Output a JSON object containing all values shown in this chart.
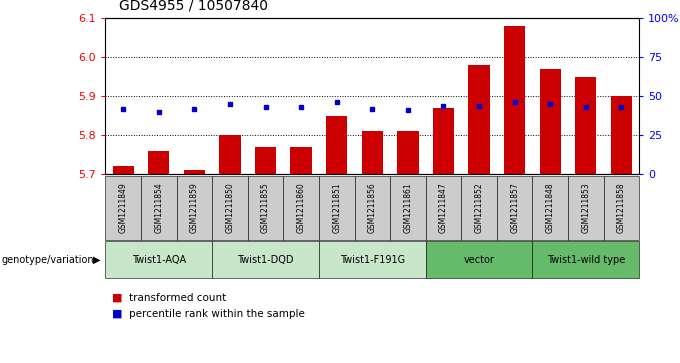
{
  "title": "GDS4955 / 10507840",
  "samples": [
    "GSM1211849",
    "GSM1211854",
    "GSM1211859",
    "GSM1211850",
    "GSM1211855",
    "GSM1211860",
    "GSM1211851",
    "GSM1211856",
    "GSM1211861",
    "GSM1211847",
    "GSM1211852",
    "GSM1211857",
    "GSM1211848",
    "GSM1211853",
    "GSM1211858"
  ],
  "bar_values": [
    5.72,
    5.76,
    5.71,
    5.8,
    5.77,
    5.77,
    5.85,
    5.81,
    5.81,
    5.87,
    5.98,
    6.08,
    5.97,
    5.95,
    5.9
  ],
  "percentile_values": [
    42,
    40,
    42,
    45,
    43,
    43,
    46,
    42,
    41,
    44,
    44,
    46,
    45,
    43,
    43
  ],
  "groups": [
    {
      "label": "Twist1-AQA",
      "start": 0,
      "end": 3,
      "color": "#c8e6c9"
    },
    {
      "label": "Twist1-DQD",
      "start": 3,
      "end": 6,
      "color": "#c8e6c9"
    },
    {
      "label": "Twist1-F191G",
      "start": 6,
      "end": 9,
      "color": "#c8e6c9"
    },
    {
      "label": "vector",
      "start": 9,
      "end": 12,
      "color": "#66bb6a"
    },
    {
      "label": "Twist1-wild type",
      "start": 12,
      "end": 15,
      "color": "#66bb6a"
    }
  ],
  "ylim_left": [
    5.7,
    6.1
  ],
  "ylim_right": [
    0,
    100
  ],
  "yticks_left": [
    5.7,
    5.8,
    5.9,
    6.0,
    6.1
  ],
  "yticks_right": [
    0,
    25,
    50,
    75,
    100
  ],
  "bar_color": "#cc0000",
  "dot_color": "#0000cc",
  "bar_bottom": 5.7,
  "label_genotype": "genotype/variation",
  "legend_bar": "transformed count",
  "legend_dot": "percentile rank within the sample",
  "bar_width": 0.6,
  "sample_bg_color": "#cccccc",
  "title_fontsize": 10
}
